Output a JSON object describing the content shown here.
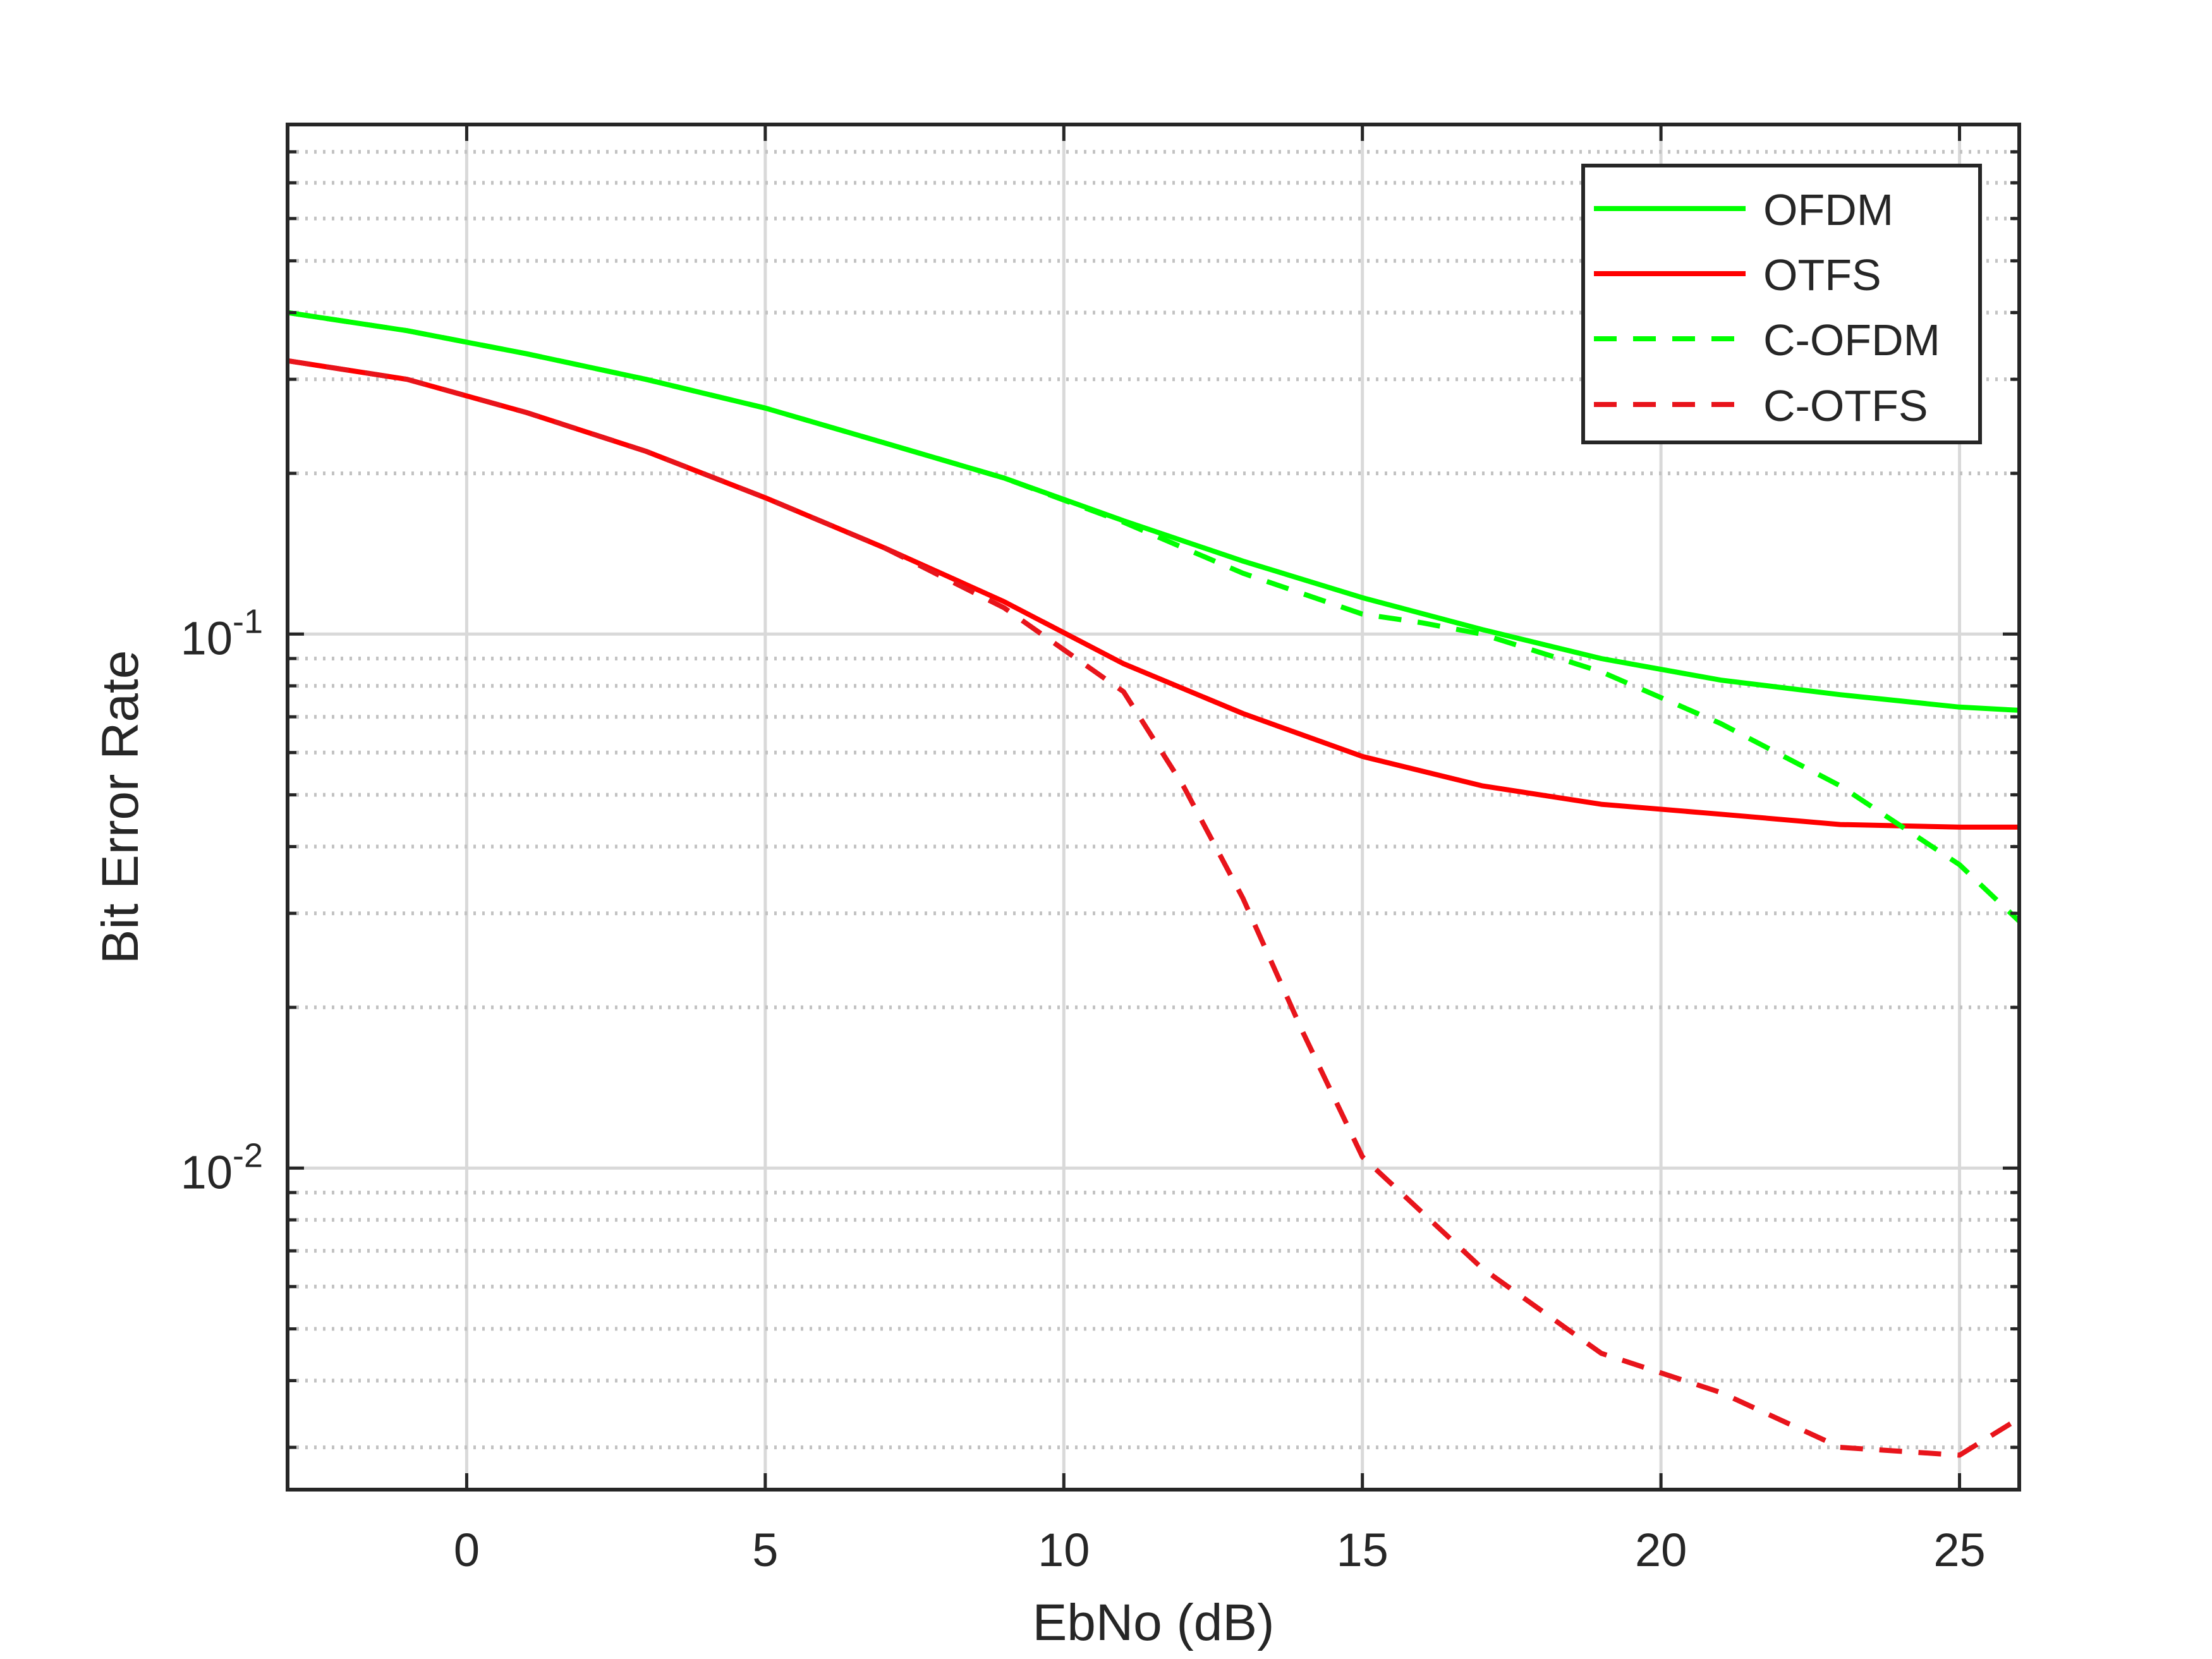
{
  "chart_data": {
    "type": "line",
    "title": "",
    "xlabel": "EbNo (dB)",
    "ylabel": "Bit Error Rate",
    "xlim": [
      -3,
      26
    ],
    "ylim": [
      0.0025,
      0.9
    ],
    "yscale": "log",
    "grid": true,
    "legend_position": "top-right",
    "x_ticks": [
      {
        "value": 0,
        "label": "0"
      },
      {
        "value": 5,
        "label": "5"
      },
      {
        "value": 10,
        "label": "10"
      },
      {
        "value": 15,
        "label": "15"
      },
      {
        "value": 20,
        "label": "20"
      },
      {
        "value": 25,
        "label": "25"
      }
    ],
    "y_ticks": [
      {
        "value": 0.1,
        "base": "10",
        "exp": "-1"
      },
      {
        "value": 0.01,
        "base": "10",
        "exp": "-2"
      }
    ],
    "series": [
      {
        "name": "OFDM",
        "color": "#00ff00",
        "style": "solid",
        "x": [
          -3,
          -1,
          1,
          3,
          5,
          7,
          9,
          11,
          13,
          15,
          17,
          19,
          21,
          23,
          25,
          26
        ],
        "y": [
          0.4,
          0.37,
          0.335,
          0.3,
          0.265,
          0.228,
          0.196,
          0.163,
          0.137,
          0.117,
          0.102,
          0.09,
          0.082,
          0.077,
          0.073,
          0.072
        ]
      },
      {
        "name": "OTFS",
        "color": "#ff0000",
        "style": "solid",
        "x": [
          -3,
          -1,
          1,
          3,
          5,
          7,
          9,
          11,
          13,
          15,
          17,
          19,
          21,
          23,
          25,
          26
        ],
        "y": [
          0.325,
          0.3,
          0.26,
          0.22,
          0.18,
          0.145,
          0.115,
          0.088,
          0.071,
          0.059,
          0.052,
          0.048,
          0.046,
          0.044,
          0.0435,
          0.0435
        ]
      },
      {
        "name": "C-OFDM",
        "color": "#00ff00",
        "style": "dashed",
        "x": [
          -3,
          -1,
          1,
          3,
          5,
          7,
          9,
          11,
          13,
          15,
          16,
          17,
          19,
          21,
          23,
          25,
          26
        ],
        "y": [
          0.4,
          0.37,
          0.335,
          0.3,
          0.265,
          0.228,
          0.196,
          0.162,
          0.13,
          0.109,
          0.105,
          0.1,
          0.085,
          0.068,
          0.052,
          0.037,
          0.029
        ]
      },
      {
        "name": "C-OTFS",
        "color": "#e8141b",
        "style": "dashed",
        "x": [
          -3,
          -1,
          1,
          3,
          5,
          7,
          9,
          11,
          12,
          13,
          14,
          15,
          17,
          19,
          21,
          23,
          25,
          26
        ],
        "y": [
          0.325,
          0.3,
          0.26,
          0.22,
          0.18,
          0.145,
          0.112,
          0.078,
          0.052,
          0.032,
          0.018,
          0.0105,
          0.0065,
          0.0045,
          0.0038,
          0.003,
          0.0029,
          0.0034
        ]
      }
    ]
  }
}
